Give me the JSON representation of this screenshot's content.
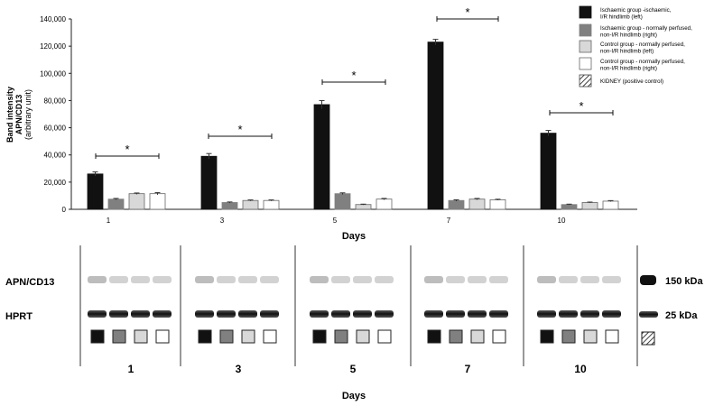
{
  "chart_data": {
    "type": "bar",
    "ylabel": [
      "Band intensity",
      "APN/CD13",
      "(arbitrary unit)"
    ],
    "xlabel": "Days",
    "categories": [
      "1",
      "3",
      "5",
      "7",
      "10"
    ],
    "ylim": [
      0,
      140000
    ],
    "yticks": [
      "0",
      "20,000",
      "40,000",
      "60,000",
      "80,000",
      "100,000",
      "120,000",
      "140,000"
    ],
    "series": [
      {
        "name": "Ischaemic group -ischaemic, I/R hindlimb (left)",
        "color": "#111111",
        "values": [
          26000,
          39000,
          77000,
          123000,
          56000
        ],
        "errors": [
          1500,
          2000,
          3000,
          2000,
          2000
        ]
      },
      {
        "name": "Ischaemic group - normally perfused, non-I/R hindlimb (right)",
        "color": "#808080",
        "values": [
          7500,
          5000,
          11500,
          6500,
          3500
        ],
        "errors": [
          500,
          400,
          600,
          500,
          300
        ]
      },
      {
        "name": "Control group - normally perfused, non-I/R hindlimb (left)",
        "color": "#d8d8d8",
        "values": [
          11500,
          6500,
          3500,
          7500,
          5000
        ],
        "errors": [
          500,
          400,
          300,
          500,
          300
        ]
      },
      {
        "name": "Control group - normally perfused, non-I/R hindlimb (right)",
        "color": "#ffffff",
        "values": [
          11500,
          6500,
          7500,
          7000,
          6000
        ],
        "errors": [
          800,
          400,
          500,
          400,
          400
        ]
      }
    ],
    "significance": [
      "*",
      "*",
      "*",
      "*",
      "*"
    ],
    "legend_extra": "KIDNEY  (positive control)",
    "legend_position": "top-right"
  },
  "blot": {
    "row_labels": [
      "APN/CD13",
      "HPRT"
    ],
    "size_labels": [
      "150 kDa",
      "25  kDa"
    ],
    "day_labels": [
      "1",
      "3",
      "5",
      "7",
      "10"
    ],
    "xlabel": "Days"
  }
}
